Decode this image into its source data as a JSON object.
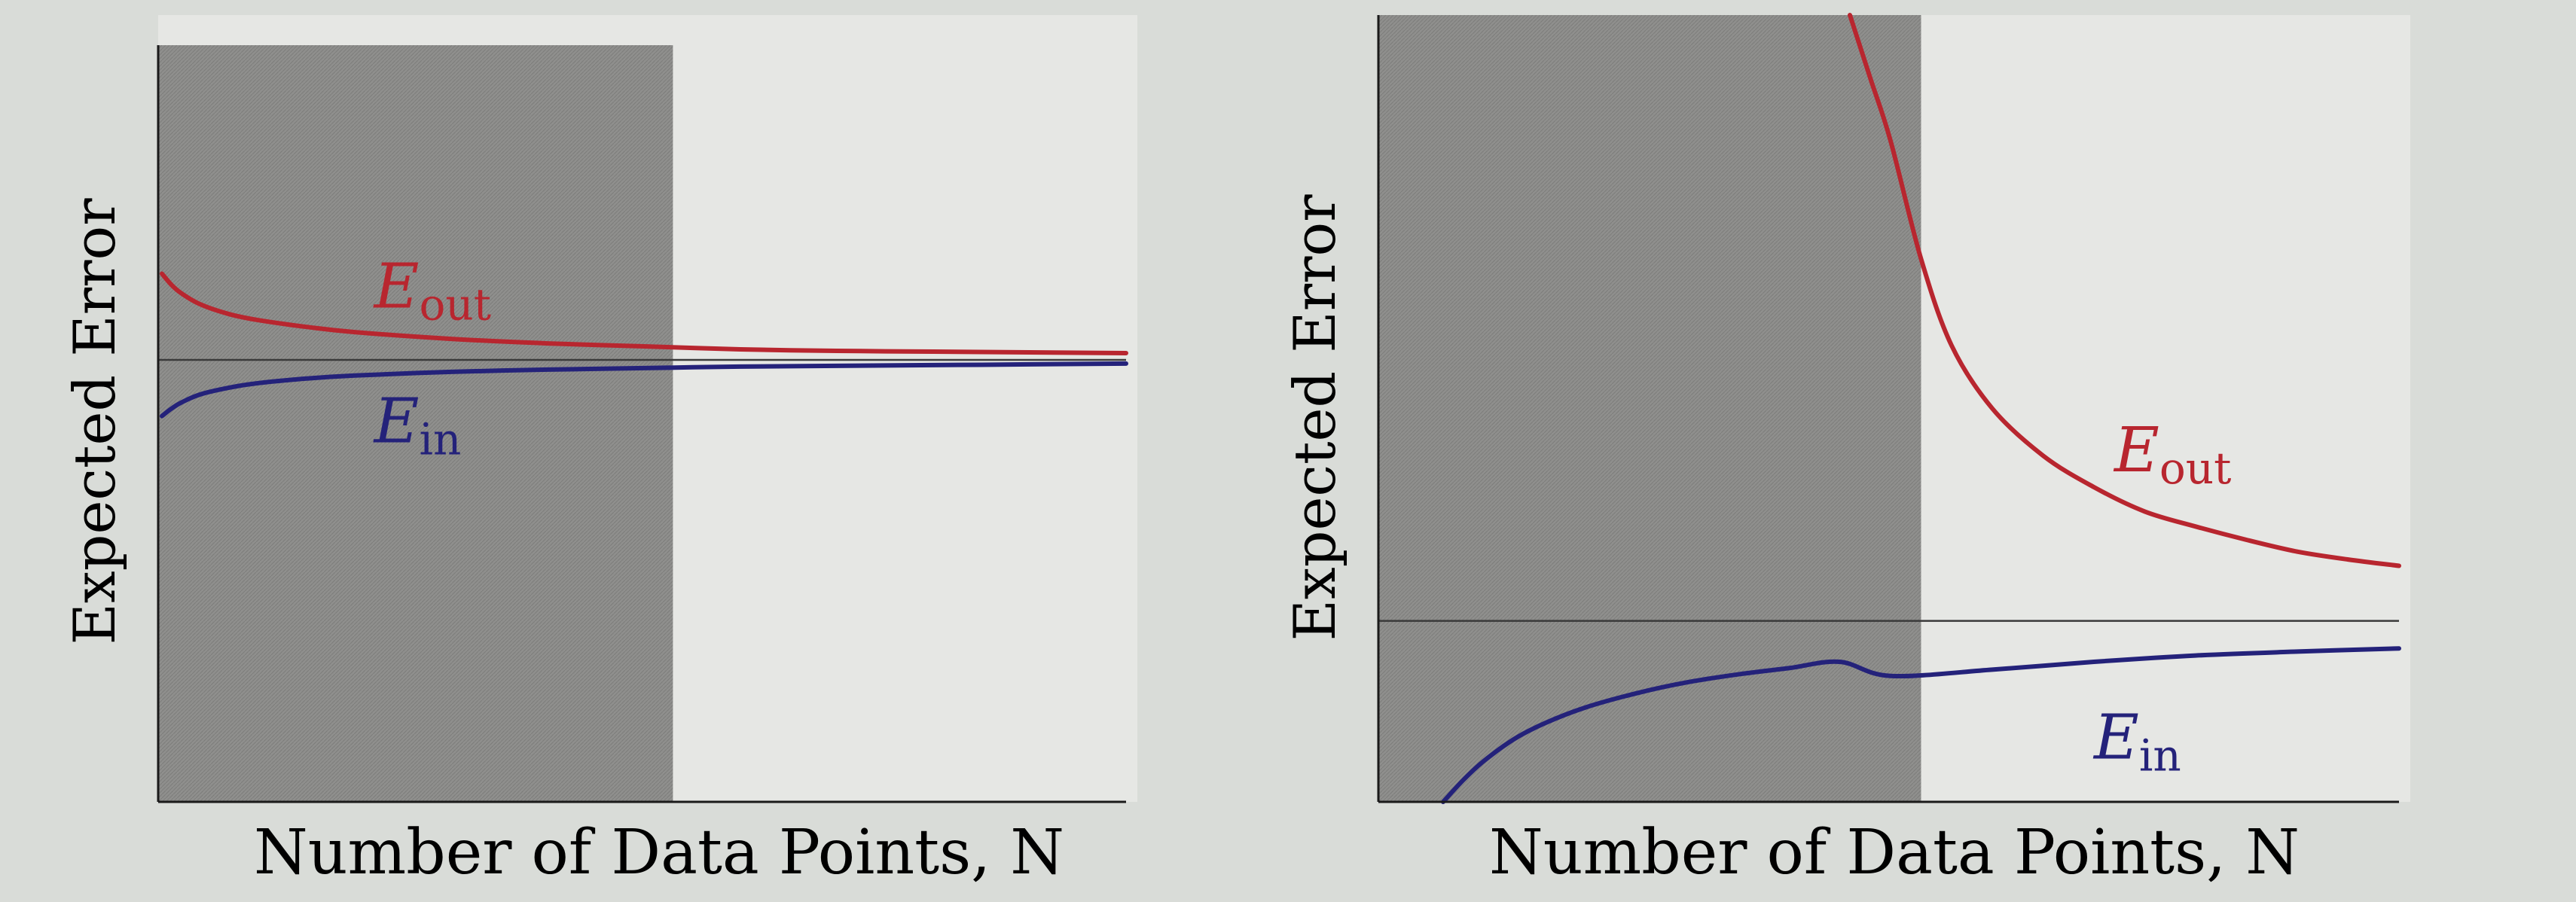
{
  "colors": {
    "page_background": "#d9dcd8",
    "panel_background": "#e6e7e4",
    "shaded_region": "#8f8f8d",
    "axis": "#1a1a1a",
    "asymptote_line": "#3a3a3a",
    "e_out": "#b8262f",
    "e_in": "#24227a"
  },
  "chart_data": [
    {
      "type": "line",
      "title": "",
      "xlabel": "Number of Data Points, N",
      "ylabel": "Expected Error",
      "xlim": [
        0,
        1
      ],
      "ylim": [
        0,
        1
      ],
      "shaded_region": {
        "x_start": 0,
        "x_end": 0.53
      },
      "asymptote": 0.59,
      "series": [
        {
          "name": "Eout",
          "name_main": "E",
          "name_sub": "out",
          "label_at": [
            0.22,
            0.66
          ],
          "x": [
            0.0,
            0.01,
            0.02,
            0.04,
            0.07,
            0.1,
            0.15,
            0.2,
            0.3,
            0.4,
            0.5,
            0.6,
            0.7,
            0.8,
            0.9,
            1.0
          ],
          "y": [
            0.705,
            0.69,
            0.679,
            0.664,
            0.651,
            0.643,
            0.634,
            0.627,
            0.618,
            0.612,
            0.608,
            0.604,
            0.602,
            0.601,
            0.6,
            0.599
          ]
        },
        {
          "name": "Ein",
          "name_main": "E",
          "name_sub": "in",
          "label_at": [
            0.22,
            0.48
          ],
          "x": [
            0.0,
            0.01,
            0.02,
            0.04,
            0.07,
            0.1,
            0.15,
            0.2,
            0.3,
            0.4,
            0.5,
            0.6,
            0.7,
            0.8,
            0.9,
            1.0
          ],
          "y": [
            0.515,
            0.525,
            0.533,
            0.544,
            0.553,
            0.559,
            0.565,
            0.569,
            0.574,
            0.577,
            0.579,
            0.581,
            0.582,
            0.583,
            0.584,
            0.585
          ]
        }
      ]
    },
    {
      "type": "line",
      "title": "",
      "xlabel": "Number of Data Points, N",
      "ylabel": "Expected Error",
      "xlim": [
        0,
        1
      ],
      "ylim": [
        0,
        1
      ],
      "shaded_region": {
        "x_start": 0,
        "x_end": 0.53
      },
      "asymptote": 0.23,
      "series": [
        {
          "name": "Eout",
          "name_main": "E",
          "name_sub": "out",
          "label_at": [
            0.72,
            0.42
          ],
          "x": [
            0.46,
            0.48,
            0.5,
            0.53,
            0.56,
            0.6,
            0.65,
            0.7,
            0.75,
            0.8,
            0.85,
            0.9,
            0.95,
            1.0
          ],
          "y": [
            1.0,
            0.92,
            0.84,
            0.69,
            0.58,
            0.5,
            0.44,
            0.4,
            0.369,
            0.35,
            0.333,
            0.318,
            0.308,
            0.3
          ]
        },
        {
          "name": "Ein",
          "name_main": "E",
          "name_sub": "in",
          "label_at": [
            0.7,
            0.055
          ],
          "x": [
            0.06,
            0.08,
            0.1,
            0.13,
            0.16,
            0.2,
            0.25,
            0.3,
            0.35,
            0.4,
            0.45,
            0.5,
            0.6,
            0.7,
            0.8,
            0.9,
            1.0
          ],
          "y": [
            0.0,
            0.028,
            0.052,
            0.08,
            0.1,
            0.12,
            0.138,
            0.152,
            0.162,
            0.17,
            0.178,
            0.16,
            0.168,
            0.178,
            0.186,
            0.191,
            0.195
          ]
        }
      ]
    }
  ]
}
